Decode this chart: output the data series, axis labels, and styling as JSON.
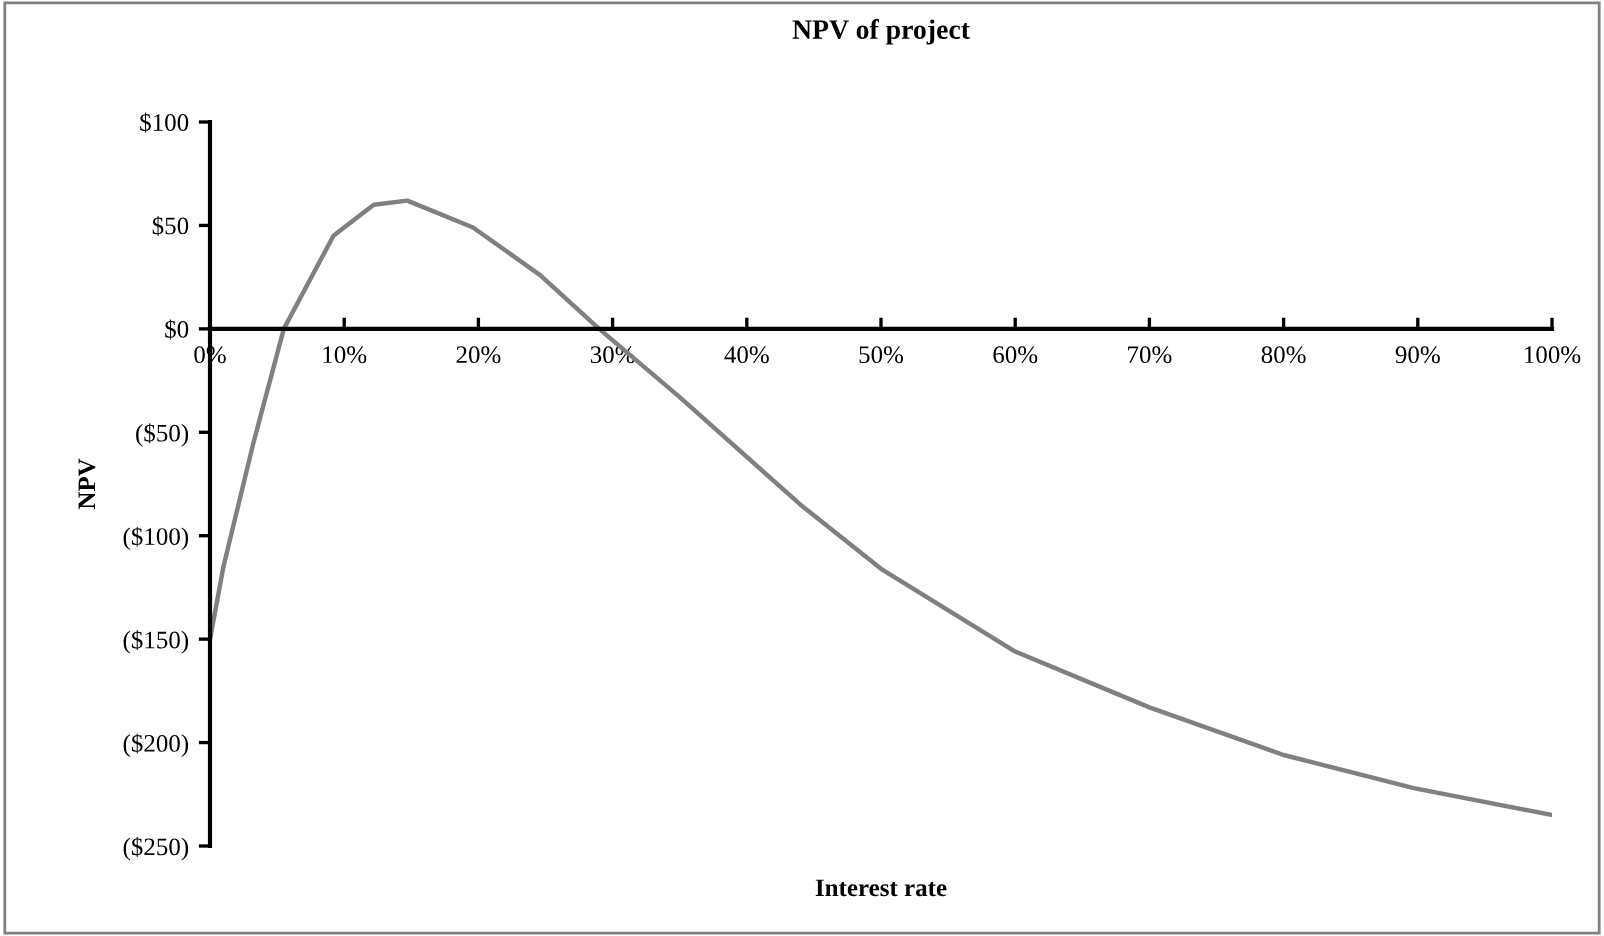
{
  "chart_data": {
    "type": "line",
    "title": "NPV of project",
    "xlabel": "Interest rate",
    "ylabel": "NPV",
    "x": [
      0,
      1,
      3.2,
      5.5,
      9.2,
      12.2,
      14.7,
      19.6,
      24.6,
      29,
      35,
      44,
      50,
      60,
      70,
      80,
      89.7,
      100
    ],
    "series": [
      {
        "color": "#808080",
        "values": [
          -150,
          -115,
          -56,
          0,
          45,
          60,
          62,
          49,
          26,
          0,
          -33,
          -85,
          -116,
          -156,
          -183,
          -206,
          -222,
          -235
        ]
      }
    ],
    "xlim": [
      0,
      100
    ],
    "ylim": [
      -250,
      100
    ],
    "xticks": [
      {
        "value": 0,
        "label": "0%"
      },
      {
        "value": 10,
        "label": "10%"
      },
      {
        "value": 20,
        "label": "20%"
      },
      {
        "value": 30,
        "label": "30%"
      },
      {
        "value": 40,
        "label": "40%"
      },
      {
        "value": 50,
        "label": "50%"
      },
      {
        "value": 60,
        "label": "60%"
      },
      {
        "value": 70,
        "label": "70%"
      },
      {
        "value": 80,
        "label": "80%"
      },
      {
        "value": 90,
        "label": "90%"
      },
      {
        "value": 100,
        "label": "100%"
      }
    ],
    "yticks": [
      {
        "value": -250,
        "label": "($250)"
      },
      {
        "value": -200,
        "label": "($200)"
      },
      {
        "value": -150,
        "label": "($150)"
      },
      {
        "value": -100,
        "label": "($100)"
      },
      {
        "value": -50,
        "label": "($50)"
      },
      {
        "value": 0,
        "label": "$0"
      },
      {
        "value": 50,
        "label": "$50"
      },
      {
        "value": 100,
        "label": "$100"
      }
    ],
    "grid": false,
    "legend": false,
    "marker": "none",
    "line_style": "solid"
  }
}
